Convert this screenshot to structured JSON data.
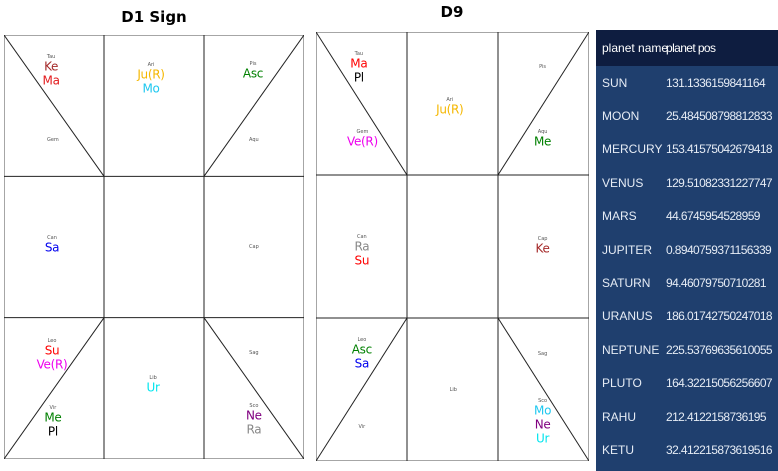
{
  "charts": [
    {
      "title": "D1 Sign",
      "houses": [
        {
          "sign": "Tau",
          "planets": [
            {
              "name": "Ke",
              "color": "#a52a2a"
            },
            {
              "name": "Ma",
              "color": "#e31a1c"
            }
          ]
        },
        {
          "sign": "Ari",
          "planets": [
            {
              "name": "Ju(R)",
              "color": "#f5b700"
            },
            {
              "name": "Mo",
              "color": "#1ec8f0"
            }
          ]
        },
        {
          "sign": "Pis",
          "planets": [
            {
              "name": "Asc",
              "color": "#008000"
            }
          ]
        },
        {
          "sign": "Gem",
          "planets": []
        },
        {
          "sign": "Aqu",
          "planets": []
        },
        {
          "sign": "Can",
          "planets": [
            {
              "name": "Sa",
              "color": "#0000ee"
            }
          ]
        },
        {
          "sign": "Cap",
          "planets": []
        },
        {
          "sign": "Leo",
          "planets": [
            {
              "name": "Su",
              "color": "#ff0000"
            },
            {
              "name": "Ve(R)",
              "color": "#ee00ee"
            }
          ]
        },
        {
          "sign": "Sag",
          "planets": []
        },
        {
          "sign": "Lib",
          "planets": [
            {
              "name": "Ur",
              "color": "#00e5ee"
            }
          ]
        },
        {
          "sign": "Vir",
          "planets": [
            {
              "name": "Me",
              "color": "#008000"
            },
            {
              "name": "Pl",
              "color": "#000000"
            }
          ]
        },
        {
          "sign": "Sco",
          "planets": [
            {
              "name": "Ne",
              "color": "#800080"
            },
            {
              "name": "Ra",
              "color": "#888888"
            }
          ]
        }
      ]
    },
    {
      "title": "D9",
      "houses": [
        {
          "sign": "Tau",
          "planets": [
            {
              "name": "Ma",
              "color": "#ff0000"
            },
            {
              "name": "Pl",
              "color": "#000000"
            }
          ]
        },
        {
          "sign": "Ari",
          "planets": [
            {
              "name": "Ju(R)",
              "color": "#f5b700"
            }
          ]
        },
        {
          "sign": "Pis",
          "planets": []
        },
        {
          "sign": "Gem",
          "planets": [
            {
              "name": "Ve(R)",
              "color": "#ee00ee"
            }
          ]
        },
        {
          "sign": "Aqu",
          "planets": [
            {
              "name": "Me",
              "color": "#008000"
            }
          ]
        },
        {
          "sign": "Can",
          "planets": [
            {
              "name": "Ra",
              "color": "#888888"
            },
            {
              "name": "Su",
              "color": "#ff0000"
            }
          ]
        },
        {
          "sign": "Cap",
          "planets": [
            {
              "name": "Ke",
              "color": "#a52a2a"
            }
          ]
        },
        {
          "sign": "Leo",
          "planets": [
            {
              "name": "Asc",
              "color": "#008000"
            },
            {
              "name": "Sa",
              "color": "#0000ee"
            }
          ]
        },
        {
          "sign": "Sag",
          "planets": []
        },
        {
          "sign": "Lib",
          "planets": []
        },
        {
          "sign": "Vir",
          "planets": []
        },
        {
          "sign": "Sco",
          "planets": [
            {
              "name": "Mo",
              "color": "#1ec8f0"
            },
            {
              "name": "Ne",
              "color": "#800080"
            },
            {
              "name": "Ur",
              "color": "#00e5ee"
            }
          ]
        }
      ]
    }
  ],
  "table": {
    "headers": [
      "planet name",
      "planet pos"
    ],
    "rows": [
      [
        "SUN",
        "131.1336159841164"
      ],
      [
        "MOON",
        "25.484508798812833"
      ],
      [
        "MERCURY",
        "153.41575042679418"
      ],
      [
        "VENUS",
        "129.51082331227747"
      ],
      [
        "MARS",
        "44.6745954528959"
      ],
      [
        "JUPITER",
        "0.8940759371156339"
      ],
      [
        "SATURN",
        "94.46079750710281"
      ],
      [
        "URANUS",
        "186.01742750247018"
      ],
      [
        "NEPTUNE",
        "225.53769635610055"
      ],
      [
        "PLUTO",
        "164.32215056256607"
      ],
      [
        "RAHU",
        "212.4122158736195"
      ],
      [
        "KETU",
        "32.412215873619516"
      ]
    ]
  }
}
